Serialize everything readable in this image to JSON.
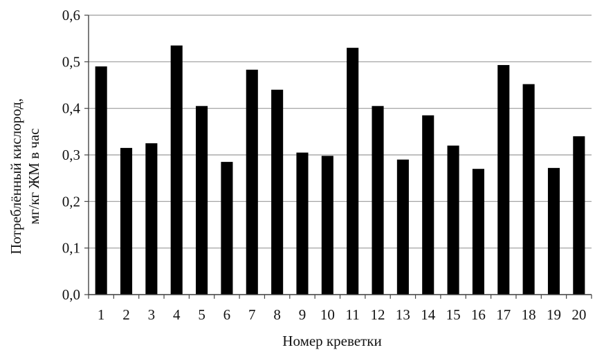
{
  "chart_data": {
    "type": "bar",
    "title": "",
    "xlabel": "Номер креветки",
    "ylabel_line1": "Потреблённый кислород,",
    "ylabel_line2": "мг/кг ЖМ в час",
    "categories": [
      "1",
      "2",
      "3",
      "4",
      "5",
      "6",
      "7",
      "8",
      "9",
      "10",
      "11",
      "12",
      "13",
      "14",
      "15",
      "16",
      "17",
      "18",
      "19",
      "20"
    ],
    "values": [
      0.49,
      0.315,
      0.325,
      0.535,
      0.405,
      0.285,
      0.483,
      0.44,
      0.305,
      0.298,
      0.53,
      0.405,
      0.29,
      0.385,
      0.32,
      0.27,
      0.493,
      0.452,
      0.272,
      0.34
    ],
    "ylim": [
      0,
      0.6
    ],
    "yticks": [
      0,
      0.1,
      0.2,
      0.3,
      0.4,
      0.5,
      0.6
    ],
    "ytick_labels": [
      "0,0",
      "0,1",
      "0,2",
      "0,3",
      "0,4",
      "0,5",
      "0,6"
    ],
    "grid": true,
    "bar_color": "#000000",
    "grid_color": "#9a9a9a"
  }
}
